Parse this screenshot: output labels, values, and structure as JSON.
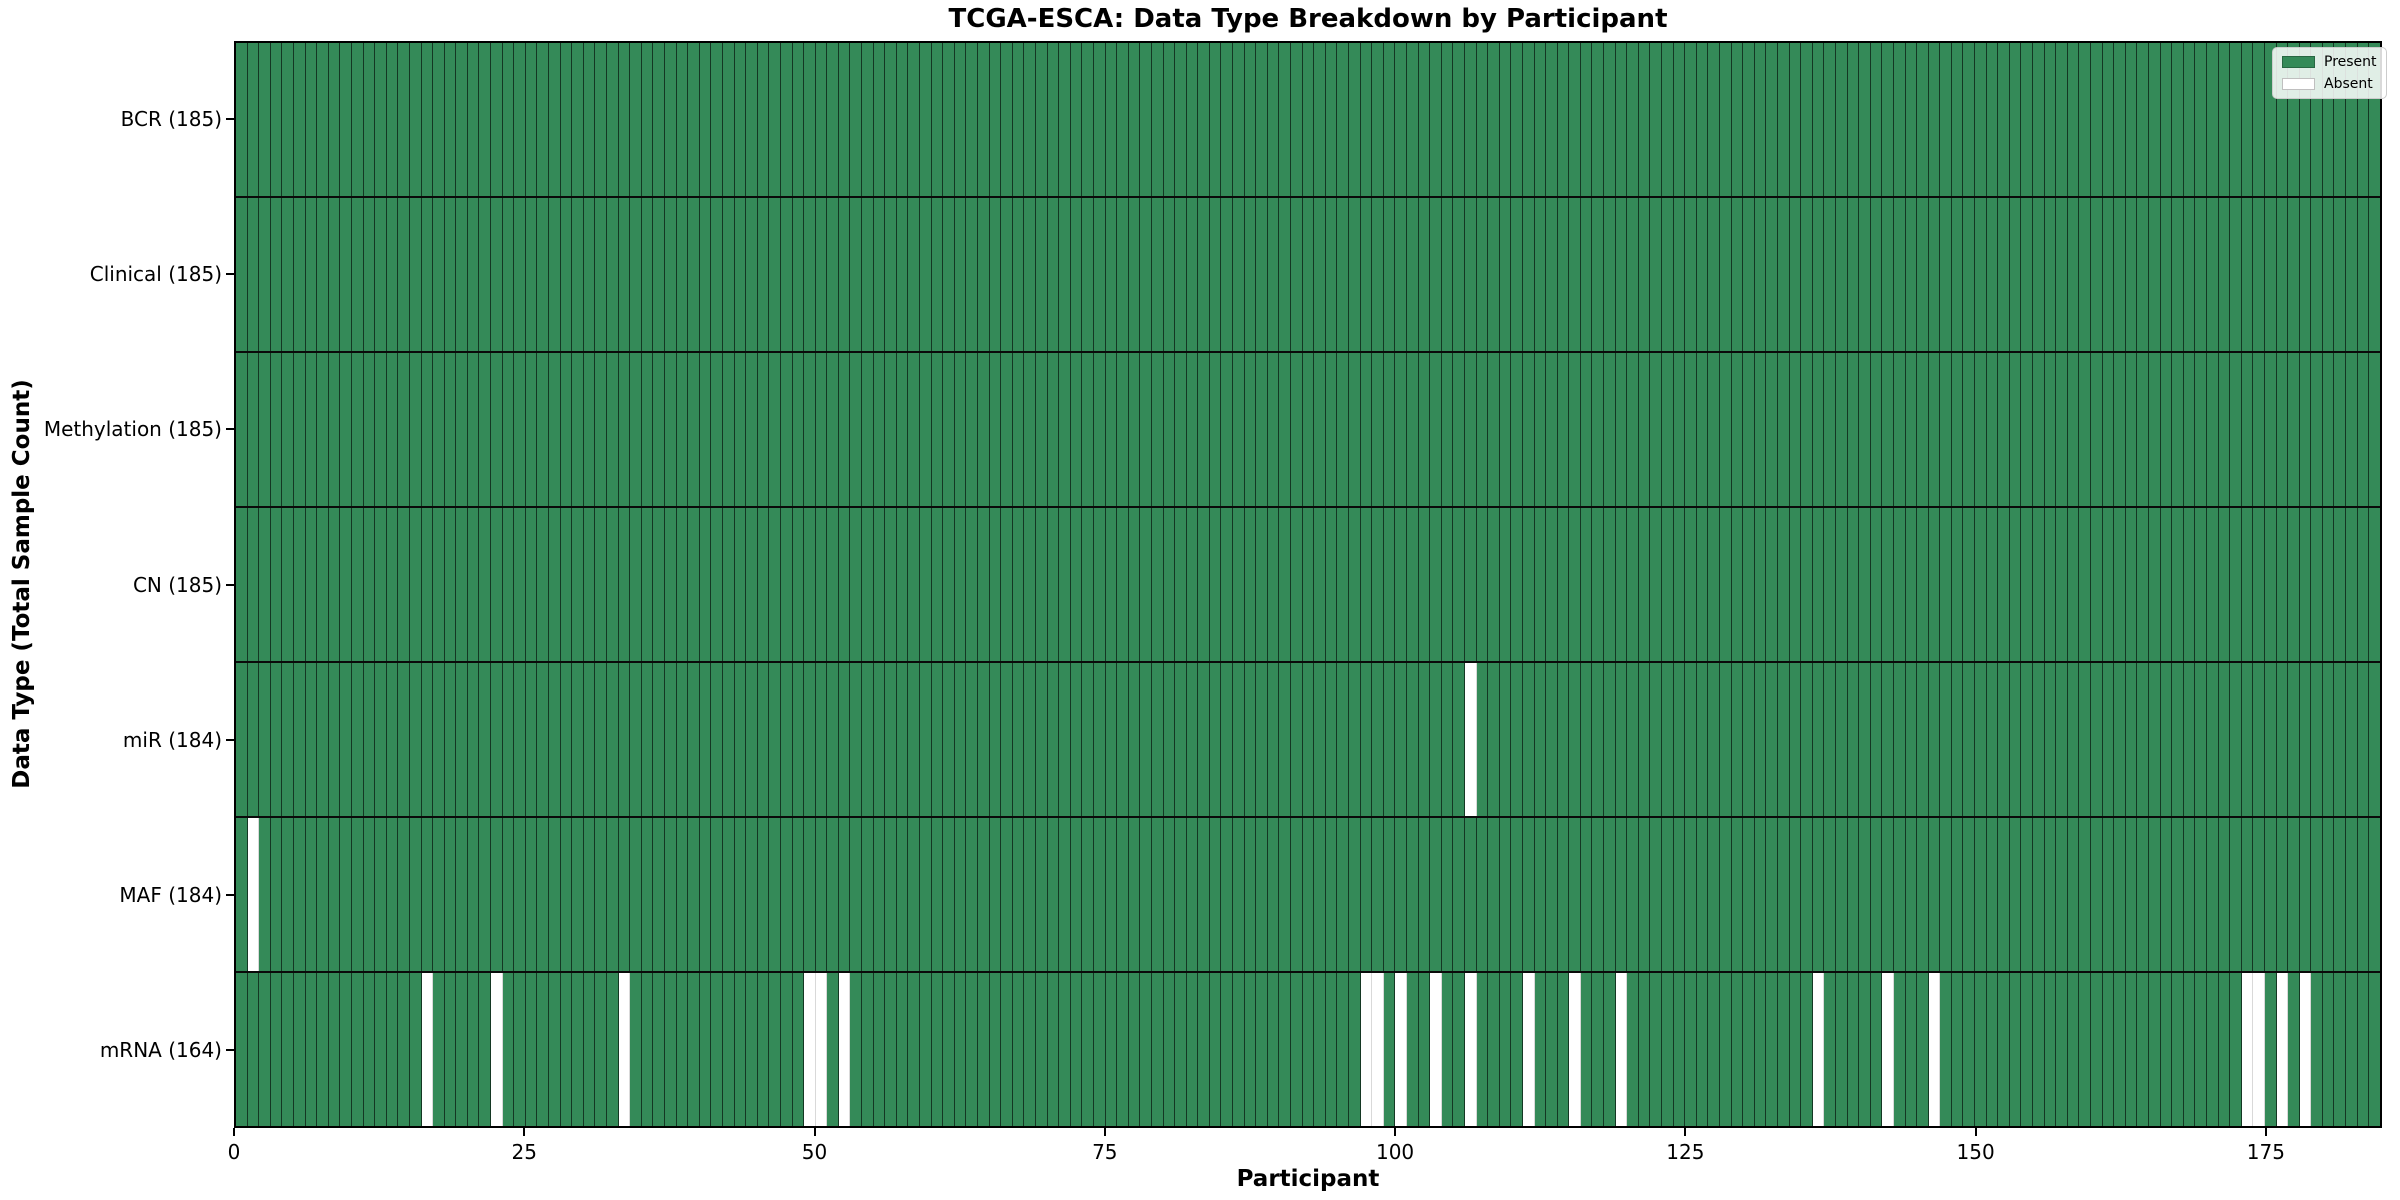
{
  "chart_data": {
    "type": "heatmap",
    "title": "TCGA-ESCA: Data Type Breakdown by Participant",
    "xlabel": "Participant",
    "ylabel": "Data Type (Total Sample Count)",
    "n_participants": 185,
    "x_ticks": [
      0,
      25,
      50,
      75,
      100,
      125,
      150,
      175
    ],
    "x_range": [
      0,
      185
    ],
    "grid": false,
    "legend_position": "upper right",
    "legend": [
      {
        "label": "Present",
        "color": "#348a58"
      },
      {
        "label": "Absent",
        "color": "#ffffff"
      }
    ],
    "colors": {
      "present": "#348a58",
      "absent": "#ffffff",
      "cell_edge_present": "rgba(0,0,0,0.6)",
      "cell_edge_absent": "rgba(0,0,0,0.15)",
      "row_divider": "#0a0a0a",
      "plot_border": "#000000"
    },
    "rows": [
      {
        "name": "BCR",
        "label": "BCR (185)",
        "present_count": 185,
        "absent_participants": []
      },
      {
        "name": "Clinical",
        "label": "Clinical (185)",
        "present_count": 185,
        "absent_participants": []
      },
      {
        "name": "Methylation",
        "label": "Methylation (185)",
        "present_count": 185,
        "absent_participants": []
      },
      {
        "name": "CN",
        "label": "CN (185)",
        "present_count": 185,
        "absent_participants": []
      },
      {
        "name": "miR",
        "label": "miR (184)",
        "present_count": 184,
        "absent_participants": [
          106
        ]
      },
      {
        "name": "MAF",
        "label": "MAF (184)",
        "present_count": 184,
        "absent_participants": [
          1
        ]
      },
      {
        "name": "mRNA",
        "label": "mRNA (164)",
        "present_count": 164,
        "absent_participants": [
          16,
          22,
          33,
          49,
          50,
          52,
          97,
          98,
          100,
          103,
          106,
          111,
          115,
          119,
          136,
          142,
          146,
          173,
          174,
          176,
          178
        ]
      }
    ]
  }
}
